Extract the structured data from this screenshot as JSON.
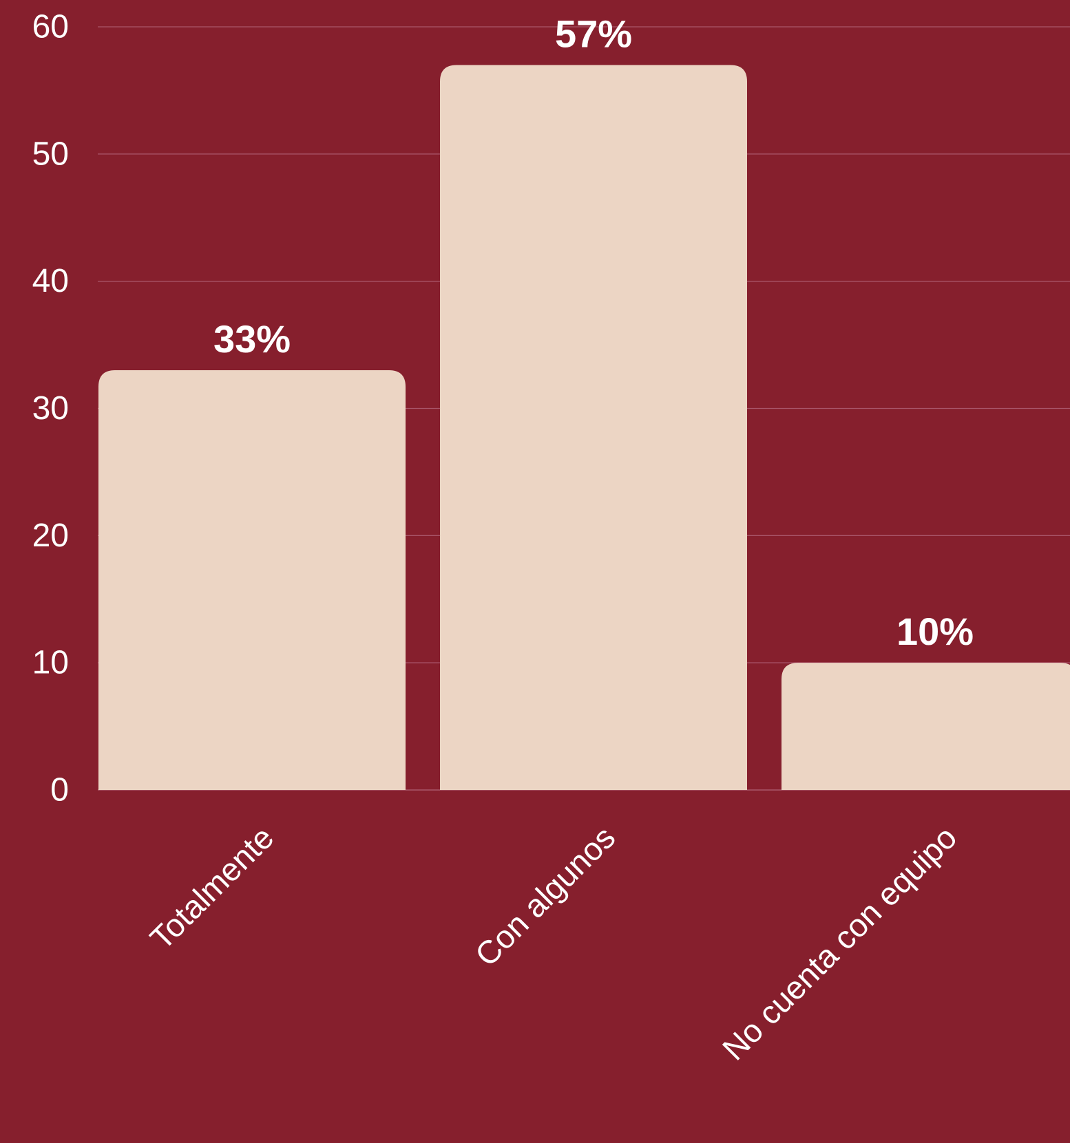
{
  "chart_data": {
    "type": "bar",
    "title": "",
    "xlabel": "",
    "ylabel": "",
    "categories": [
      "Totalmente",
      "Con algunos",
      "No cuenta con equipo"
    ],
    "values": [
      33,
      57,
      10
    ],
    "value_labels": [
      "33%",
      "57%",
      "10%"
    ],
    "ylim": [
      0,
      60
    ],
    "y_ticks": [
      0,
      10,
      20,
      30,
      40,
      50,
      60
    ],
    "grid": true,
    "legend": "none",
    "x_tick_rotation_deg": -45
  },
  "colors": {
    "background": "#861F2D",
    "bar": "#ECD5C4",
    "gridline": "#A9566A",
    "text": "#FFFFFF"
  }
}
